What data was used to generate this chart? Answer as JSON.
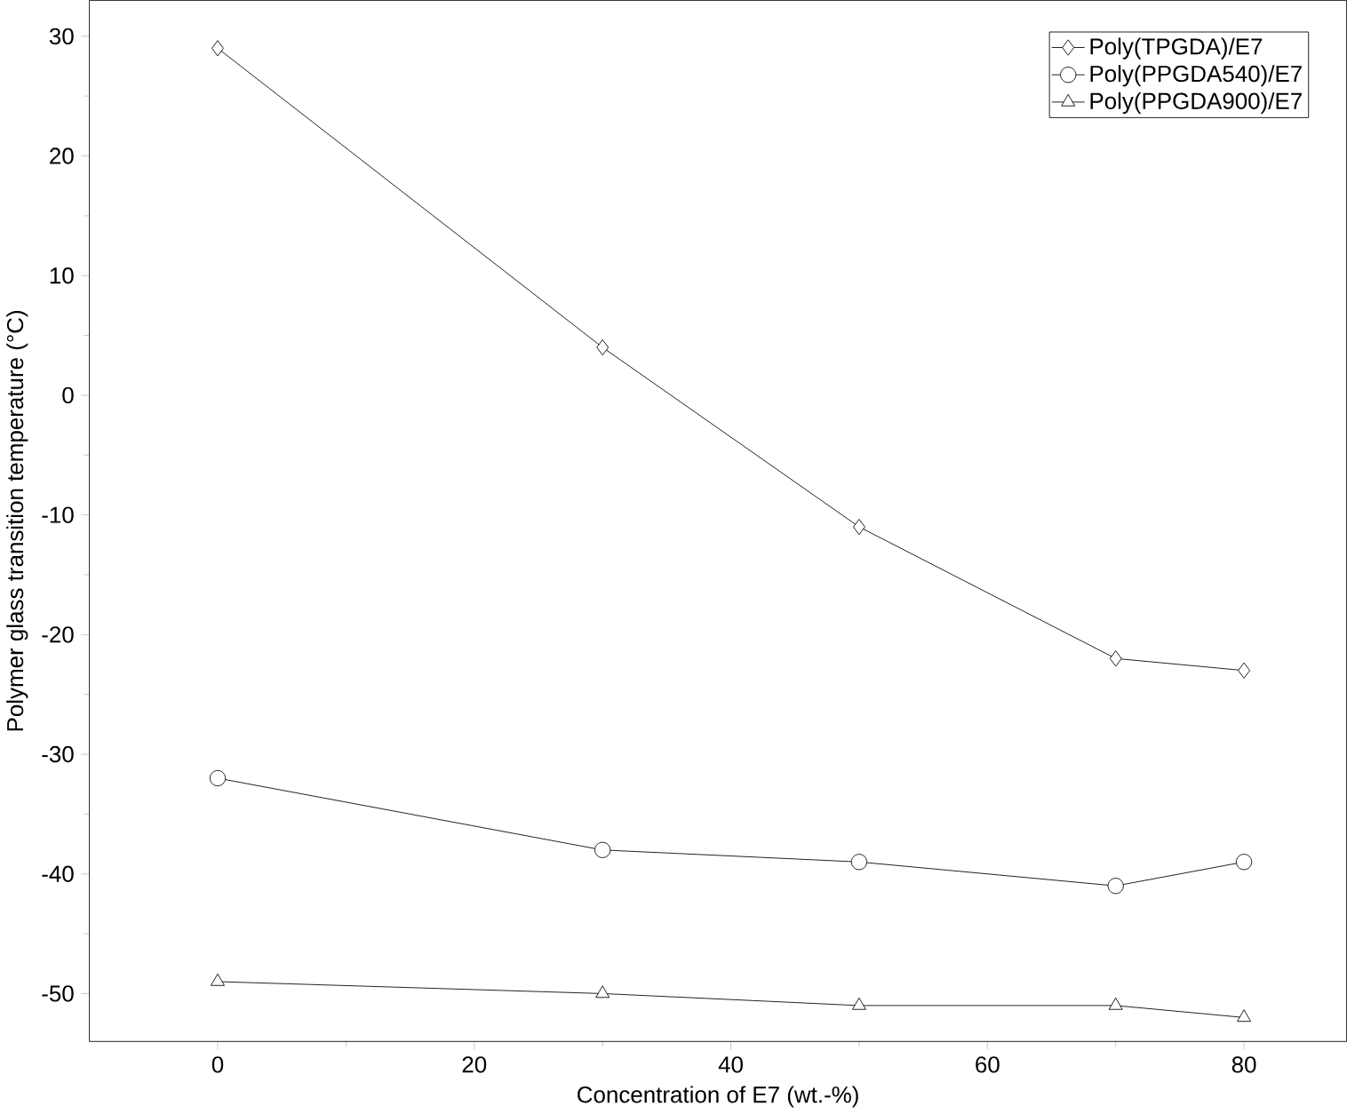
{
  "chart_data": {
    "type": "line",
    "xlabel": "Concentration of E7 (wt.-%)",
    "ylabel": "Polymer glass transition temperature (°C)",
    "x": [
      0,
      30,
      50,
      70,
      80
    ],
    "series": [
      {
        "name": "Poly(TPGDA)/E7",
        "color": "#000000",
        "marker": "diamond",
        "values": [
          29,
          4,
          -11,
          -22,
          -23
        ]
      },
      {
        "name": "Poly(PPGDA540)/E7",
        "color": "#000000",
        "marker": "circle",
        "values": [
          -32,
          -38,
          -39,
          -41,
          -39
        ]
      },
      {
        "name": "Poly(PPGDA900)/E7",
        "color": "#000000",
        "marker": "triangle",
        "values": [
          -49,
          -50,
          -51,
          -51,
          -52
        ]
      }
    ],
    "xlim": [
      -10,
      88
    ],
    "ylim": [
      -54,
      33
    ],
    "xticks": [
      0,
      20,
      40,
      60,
      80
    ],
    "yticks": [
      -50,
      -40,
      -30,
      -20,
      -10,
      0,
      10,
      20,
      30
    ],
    "legend": "top right",
    "line_style": "solid",
    "grid": false
  }
}
